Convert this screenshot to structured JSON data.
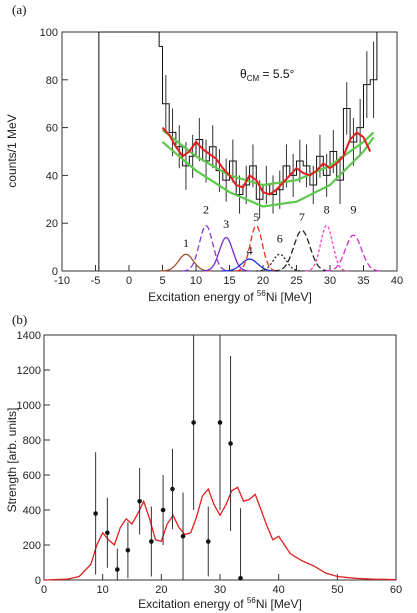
{
  "chart_data": [
    {
      "type": "line",
      "panel_label": "(a)",
      "annotation": "θ",
      "annotation_sub": "CM",
      "annotation_tail": " = 5.5°",
      "xlabel": "Excitation energy of ",
      "xlabel_sup": "56",
      "xlabel_tail": "Ni [MeV]",
      "ylabel": "counts/1 MeV",
      "xlim": [
        -10,
        40
      ],
      "ylim": [
        0,
        100
      ],
      "xticks": [
        -10,
        -5,
        0,
        5,
        10,
        15,
        20,
        25,
        30,
        35,
        40
      ],
      "yticks": [
        0,
        20,
        40,
        60,
        80,
        100
      ],
      "histogram": {
        "edges": [
          -4.5,
          4.5,
          5,
          6,
          7,
          8,
          9,
          10,
          11,
          12,
          13,
          14,
          15,
          16,
          17,
          18,
          19,
          20,
          21,
          22,
          23,
          24,
          25,
          26,
          27,
          28,
          29,
          30,
          31,
          32,
          33,
          34,
          35,
          36,
          37
        ],
        "values": [
          100,
          94,
          70,
          58,
          52,
          44,
          48,
          55,
          46,
          52,
          42,
          38,
          46,
          32,
          36,
          44,
          30,
          36,
          32,
          34,
          44,
          40,
          46,
          44,
          36,
          48,
          40,
          50,
          38,
          68,
          54,
          60,
          78,
          80
        ]
      },
      "errorbars": [
        {
          "x": 5.5,
          "y": 70,
          "err": 12
        },
        {
          "x": 6.5,
          "y": 58,
          "err": 10
        },
        {
          "x": 7.5,
          "y": 52,
          "err": 9
        },
        {
          "x": 8.5,
          "y": 44,
          "err": 10
        },
        {
          "x": 9.5,
          "y": 48,
          "err": 9
        },
        {
          "x": 10.5,
          "y": 55,
          "err": 9
        },
        {
          "x": 11.5,
          "y": 46,
          "err": 9
        },
        {
          "x": 12.5,
          "y": 52,
          "err": 9
        },
        {
          "x": 13.5,
          "y": 42,
          "err": 9
        },
        {
          "x": 14.5,
          "y": 38,
          "err": 9
        },
        {
          "x": 15.5,
          "y": 46,
          "err": 9
        },
        {
          "x": 16.5,
          "y": 32,
          "err": 8
        },
        {
          "x": 17.5,
          "y": 36,
          "err": 8
        },
        {
          "x": 18.5,
          "y": 44,
          "err": 9
        },
        {
          "x": 19.5,
          "y": 30,
          "err": 8
        },
        {
          "x": 20.5,
          "y": 36,
          "err": 8
        },
        {
          "x": 21.5,
          "y": 32,
          "err": 8
        },
        {
          "x": 22.5,
          "y": 34,
          "err": 8
        },
        {
          "x": 23.5,
          "y": 44,
          "err": 9
        },
        {
          "x": 24.5,
          "y": 40,
          "err": 9
        },
        {
          "x": 25.5,
          "y": 46,
          "err": 9
        },
        {
          "x": 26.5,
          "y": 44,
          "err": 9
        },
        {
          "x": 27.5,
          "y": 36,
          "err": 8
        },
        {
          "x": 28.5,
          "y": 48,
          "err": 9
        },
        {
          "x": 29.5,
          "y": 40,
          "err": 9
        },
        {
          "x": 30.5,
          "y": 50,
          "err": 9
        },
        {
          "x": 31.5,
          "y": 38,
          "err": 10
        },
        {
          "x": 32.5,
          "y": 68,
          "err": 11
        },
        {
          "x": 33.5,
          "y": 54,
          "err": 10
        },
        {
          "x": 34.5,
          "y": 60,
          "err": 12
        },
        {
          "x": 35.5,
          "y": 78,
          "err": 14
        },
        {
          "x": 36.5,
          "y": 80,
          "err": 16
        }
      ],
      "background_curves": [
        {
          "color": "#5cc84c",
          "points": [
            [
              5,
              59
            ],
            [
              10,
              48
            ],
            [
              15,
              40
            ],
            [
              20,
              36
            ],
            [
              25,
              38
            ],
            [
              30,
              44
            ],
            [
              35,
              54
            ],
            [
              36.5,
              58
            ]
          ]
        },
        {
          "color": "#5cc84c",
          "points": [
            [
              5,
              54
            ],
            [
              10,
              42
            ],
            [
              15,
              33
            ],
            [
              20,
              27
            ],
            [
              25,
              29
            ],
            [
              30,
              36
            ],
            [
              35,
              50
            ],
            [
              36.5,
              56
            ]
          ]
        }
      ],
      "fit_curve": {
        "color": "#e02020",
        "points": [
          [
            5,
            60
          ],
          [
            6,
            57
          ],
          [
            7,
            52
          ],
          [
            8,
            48
          ],
          [
            9,
            50
          ],
          [
            10,
            54
          ],
          [
            11,
            51
          ],
          [
            12,
            49
          ],
          [
            13,
            47
          ],
          [
            14,
            43
          ],
          [
            15,
            40
          ],
          [
            16,
            36
          ],
          [
            17,
            35
          ],
          [
            18,
            40
          ],
          [
            19,
            38
          ],
          [
            20,
            33
          ],
          [
            21,
            32
          ],
          [
            22,
            34
          ],
          [
            23,
            37
          ],
          [
            24,
            40
          ],
          [
            25,
            43
          ],
          [
            26,
            41
          ],
          [
            27,
            40
          ],
          [
            28,
            42
          ],
          [
            29,
            45
          ],
          [
            30,
            43
          ],
          [
            31,
            45
          ],
          [
            32,
            48
          ],
          [
            33,
            55
          ],
          [
            34,
            58
          ],
          [
            35,
            56
          ],
          [
            36,
            50
          ]
        ]
      },
      "peaks": [
        {
          "label": "1",
          "center": 8.5,
          "amp": 7,
          "sigma": 1.1,
          "color": "#a05030",
          "dash": "0",
          "label_y": 10
        },
        {
          "label": "2",
          "center": 11.5,
          "amp": 19,
          "sigma": 1.0,
          "color": "#8a3ad0",
          "dash": "6 3",
          "label_y": 24
        },
        {
          "label": "3",
          "center": 14.5,
          "amp": 14,
          "sigma": 1.0,
          "color": "#7a28c8",
          "dash": "0",
          "label_y": 18
        },
        {
          "label": "4",
          "center": 18.0,
          "amp": 5,
          "sigma": 1.2,
          "color": "#2030d0",
          "dash": "0",
          "label_y": 7
        },
        {
          "label": "5",
          "center": 19.0,
          "amp": 19,
          "sigma": 0.9,
          "color": "#f03020",
          "dash": "6 3",
          "label_y": 21
        },
        {
          "label": "6",
          "center": 22.5,
          "amp": 7,
          "sigma": 1.0,
          "color": "#222222",
          "dash": "2 2",
          "label_y": 12
        },
        {
          "label": "7",
          "center": 25.8,
          "amp": 17,
          "sigma": 1.2,
          "color": "#222222",
          "dash": "6 3",
          "label_y": 21
        },
        {
          "label": "8",
          "center": 29.5,
          "amp": 19,
          "sigma": 0.9,
          "color": "#ff40c8",
          "dash": "3 2",
          "label_y": 24
        },
        {
          "label": "9",
          "center": 33.5,
          "amp": 15,
          "sigma": 1.2,
          "color": "#d030d0",
          "dash": "6 3",
          "label_y": 24
        }
      ]
    },
    {
      "type": "line",
      "panel_label": "(b)",
      "xlabel": "Excitation energy of ",
      "xlabel_sup": "56",
      "xlabel_tail": "Ni [MeV]",
      "ylabel": "Strength [arb. units]",
      "xlim": [
        0,
        60
      ],
      "ylim": [
        0,
        1400
      ],
      "xticks": [
        0,
        10,
        20,
        30,
        40,
        50,
        60
      ],
      "yticks": [
        0,
        200,
        400,
        600,
        800,
        1000,
        1200,
        1400
      ],
      "strength_curve": {
        "color": "#e02020",
        "points": [
          [
            0,
            0
          ],
          [
            4,
            5
          ],
          [
            6,
            20
          ],
          [
            8,
            90
          ],
          [
            9,
            200
          ],
          [
            10,
            270
          ],
          [
            11,
            230
          ],
          [
            12,
            200
          ],
          [
            13,
            300
          ],
          [
            14,
            350
          ],
          [
            15,
            320
          ],
          [
            16,
            380
          ],
          [
            17,
            450
          ],
          [
            18,
            350
          ],
          [
            19,
            230
          ],
          [
            20,
            220
          ],
          [
            21,
            320
          ],
          [
            22,
            370
          ],
          [
            23,
            300
          ],
          [
            24,
            260
          ],
          [
            25,
            270
          ],
          [
            26,
            360
          ],
          [
            27,
            480
          ],
          [
            28,
            520
          ],
          [
            29,
            430
          ],
          [
            30,
            370
          ],
          [
            31,
            430
          ],
          [
            32,
            510
          ],
          [
            33,
            530
          ],
          [
            34,
            450
          ],
          [
            35,
            460
          ],
          [
            36,
            490
          ],
          [
            37,
            400
          ],
          [
            38,
            310
          ],
          [
            39,
            230
          ],
          [
            40,
            250
          ],
          [
            41,
            200
          ],
          [
            42,
            150
          ],
          [
            44,
            110
          ],
          [
            46,
            80
          ],
          [
            48,
            40
          ],
          [
            50,
            20
          ],
          [
            53,
            10
          ],
          [
            56,
            5
          ],
          [
            60,
            2
          ]
        ]
      },
      "points": [
        {
          "x": 8.8,
          "y": 380,
          "err": 350
        },
        {
          "x": 10.8,
          "y": 270,
          "err": 200
        },
        {
          "x": 12.5,
          "y": 60,
          "err": 120
        },
        {
          "x": 14.3,
          "y": 170,
          "err": 160
        },
        {
          "x": 16.3,
          "y": 450,
          "err": 190
        },
        {
          "x": 18.3,
          "y": 220,
          "err": 200
        },
        {
          "x": 20.3,
          "y": 400,
          "err": 200
        },
        {
          "x": 21.9,
          "y": 520,
          "err": 230
        },
        {
          "x": 23.7,
          "y": 250,
          "err": 250
        },
        {
          "x": 25.5,
          "y": 900,
          "err": 500
        },
        {
          "x": 28.0,
          "y": 220,
          "err": 200
        },
        {
          "x": 30.0,
          "y": 900,
          "err": 500
        },
        {
          "x": 31.8,
          "y": 780,
          "err": 500
        },
        {
          "x": 33.5,
          "y": 10,
          "err": 400
        }
      ]
    }
  ]
}
